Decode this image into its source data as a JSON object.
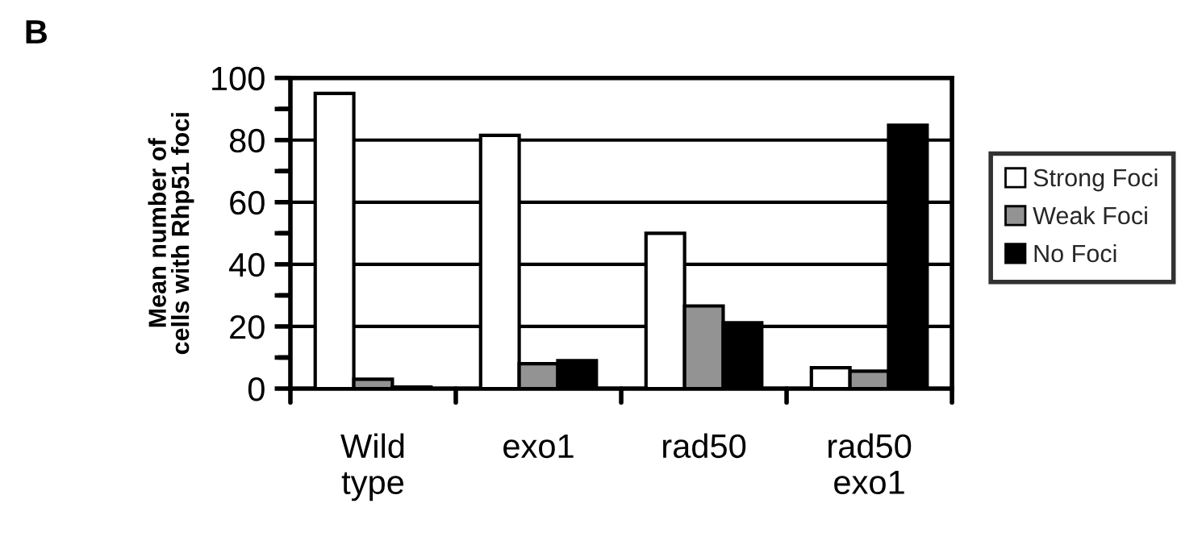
{
  "chart_data": {
    "type": "bar",
    "title": "B",
    "ylabel": "Mean number of\ncells with Rhp51 foci",
    "categories": [
      "Wild\ntype",
      "exo1",
      "rad50",
      "rad50\nexo1"
    ],
    "series": [
      {
        "name": "Strong Foci",
        "color": "#ffffff",
        "values": [
          95,
          81.5,
          50,
          6.7
        ]
      },
      {
        "name": "Weak Foci",
        "color": "#939393",
        "values": [
          3,
          8,
          26.6,
          5.6
        ]
      },
      {
        "name": "No Foci",
        "color": "#000000",
        "values": [
          0.5,
          9,
          21.2,
          84.8
        ]
      }
    ],
    "ylim": [
      0,
      100
    ],
    "yticks": [
      0,
      {
        "value": 10,
        "label": null
      },
      20,
      {
        "value": 30,
        "label": null
      },
      40,
      {
        "value": 50,
        "label": null
      },
      60,
      {
        "value": 70,
        "label": null
      },
      80,
      {
        "value": 90,
        "label": null
      },
      100
    ],
    "grid": "y",
    "legend": "right"
  }
}
